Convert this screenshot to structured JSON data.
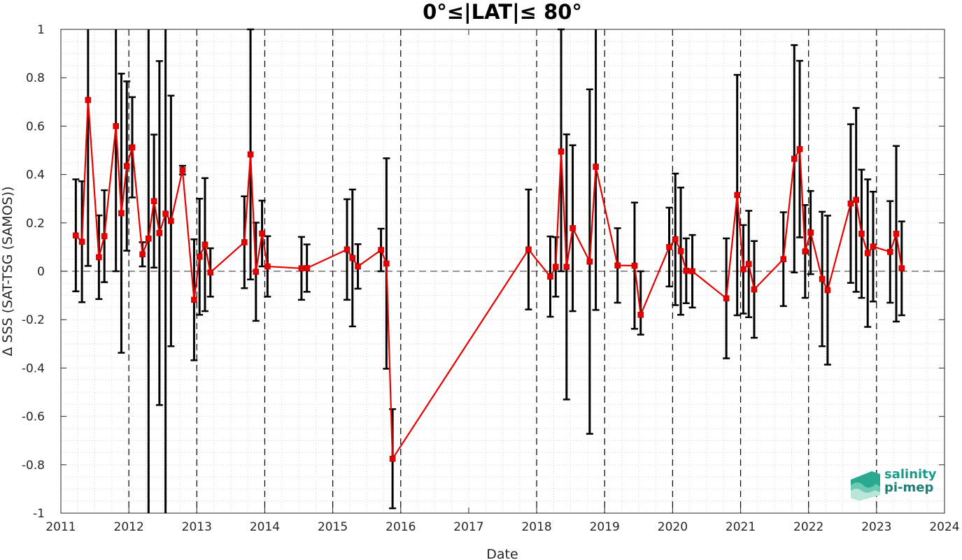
{
  "chart_data": {
    "type": "line",
    "title": "0°≤|LAT|≤ 80°",
    "xlabel": "Date",
    "ylabel": "Δ SSS (SAT-TSG (SAMOS))",
    "xlim": [
      2011,
      2024
    ],
    "ylim": [
      -1,
      1
    ],
    "x_ticks": [
      "2011",
      "2012",
      "2013",
      "2014",
      "2015",
      "2016",
      "2017",
      "2018",
      "2019",
      "2020",
      "2021",
      "2022",
      "2023",
      "2024"
    ],
    "y_ticks": [
      "-1",
      "-0.8",
      "-0.6",
      "-0.4",
      "-0.2",
      "0",
      "0.2",
      "0.4",
      "0.6",
      "0.8",
      "1"
    ],
    "grid": "dotted minor grid",
    "reference_line": 0,
    "year_markers": [
      2012,
      2013,
      2014,
      2015,
      2016,
      2018,
      2019,
      2020,
      2021,
      2022,
      2023
    ],
    "colors": {
      "series": "#e60000",
      "errorbar": "#000000",
      "yearline": "#000000"
    },
    "series": [
      {
        "points": [
          {
            "x": 2011.22,
            "y": 0.148,
            "err_low": -0.083,
            "err_high": 0.38
          },
          {
            "x": 2011.31,
            "y": 0.122,
            "err_low": -0.128,
            "err_high": 0.372
          },
          {
            "x": 2011.4,
            "y": 0.708,
            "err_low": 0.022,
            "err_high": 1.394
          },
          {
            "x": 2011.56,
            "y": 0.058,
            "err_low": -0.115,
            "err_high": 0.231
          },
          {
            "x": 2011.64,
            "y": 0.145,
            "err_low": -0.045,
            "err_high": 0.335
          },
          {
            "x": 2011.81,
            "y": 0.6,
            "err_low": 0.0,
            "err_high": 1.2
          },
          {
            "x": 2011.89,
            "y": 0.24,
            "err_low": -0.337,
            "err_high": 0.817
          },
          {
            "x": 2011.97,
            "y": 0.435,
            "err_low": 0.085,
            "err_high": 0.785
          },
          {
            "x": 2012.05,
            "y": 0.512,
            "err_low": 0.305,
            "err_high": 0.72
          },
          {
            "x": 2012.2,
            "y": 0.07,
            "err_low": 0.02,
            "err_high": 0.12
          },
          {
            "x": 2012.29,
            "y": 0.135,
            "err_low": -1.05,
            "err_high": 1.32
          },
          {
            "x": 2012.37,
            "y": 0.29,
            "err_low": 0.015,
            "err_high": 0.565
          },
          {
            "x": 2012.45,
            "y": 0.158,
            "err_low": -0.553,
            "err_high": 0.869
          },
          {
            "x": 2012.54,
            "y": 0.238,
            "err_low": -1.05,
            "err_high": 1.52
          },
          {
            "x": 2012.62,
            "y": 0.208,
            "err_low": -0.31,
            "err_high": 0.726
          },
          {
            "x": 2012.79,
            "y": 0.418,
            "err_low": 0.4,
            "err_high": 0.436
          },
          {
            "x": 2012.96,
            "y": -0.118,
            "err_low": -0.368,
            "err_high": 0.132
          },
          {
            "x": 2013.04,
            "y": 0.06,
            "err_low": -0.18,
            "err_high": 0.3
          },
          {
            "x": 2013.12,
            "y": 0.11,
            "err_low": -0.165,
            "err_high": 0.385
          },
          {
            "x": 2013.2,
            "y": -0.005,
            "err_low": -0.105,
            "err_high": 0.095
          },
          {
            "x": 2013.7,
            "y": 0.12,
            "err_low": -0.07,
            "err_high": 0.31
          },
          {
            "x": 2013.79,
            "y": 0.483,
            "err_low": -0.034,
            "err_high": 1.0
          },
          {
            "x": 2013.87,
            "y": -0.002,
            "err_low": -0.205,
            "err_high": 0.201
          },
          {
            "x": 2013.96,
            "y": 0.156,
            "err_low": 0.02,
            "err_high": 0.292
          },
          {
            "x": 2014.04,
            "y": 0.02,
            "err_low": -0.105,
            "err_high": 0.145
          },
          {
            "x": 2014.54,
            "y": 0.012,
            "err_low": -0.118,
            "err_high": 0.142
          },
          {
            "x": 2014.62,
            "y": 0.013,
            "err_low": -0.085,
            "err_high": 0.111
          },
          {
            "x": 2015.21,
            "y": 0.09,
            "err_low": -0.118,
            "err_high": 0.298
          },
          {
            "x": 2015.29,
            "y": 0.055,
            "err_low": -0.228,
            "err_high": 0.338
          },
          {
            "x": 2015.37,
            "y": 0.02,
            "err_low": -0.072,
            "err_high": 0.112
          },
          {
            "x": 2015.71,
            "y": 0.088,
            "err_low": 0.0,
            "err_high": 0.176
          },
          {
            "x": 2015.79,
            "y": 0.032,
            "err_low": -0.403,
            "err_high": 0.467
          },
          {
            "x": 2015.88,
            "y": -0.775,
            "err_low": -0.98,
            "err_high": -0.57
          },
          {
            "x": 2017.88,
            "y": 0.09,
            "err_low": -0.158,
            "err_high": 0.338
          },
          {
            "x": 2018.2,
            "y": -0.022,
            "err_low": -0.188,
            "err_high": 0.144
          },
          {
            "x": 2018.28,
            "y": 0.018,
            "err_low": -0.105,
            "err_high": 0.141
          },
          {
            "x": 2018.36,
            "y": 0.495,
            "err_low": 0.0,
            "err_high": 1.0
          },
          {
            "x": 2018.44,
            "y": 0.018,
            "err_low": -0.53,
            "err_high": 0.566
          },
          {
            "x": 2018.53,
            "y": 0.178,
            "err_low": -0.165,
            "err_high": 0.521
          },
          {
            "x": 2018.78,
            "y": 0.04,
            "err_low": -0.672,
            "err_high": 0.752
          },
          {
            "x": 2018.87,
            "y": 0.432,
            "err_low": -0.16,
            "err_high": 1.024
          },
          {
            "x": 2019.19,
            "y": 0.024,
            "err_low": -0.13,
            "err_high": 0.178
          },
          {
            "x": 2019.44,
            "y": 0.023,
            "err_low": -0.238,
            "err_high": 0.284
          },
          {
            "x": 2019.53,
            "y": -0.18,
            "err_low": -0.262,
            "err_high": 0.0
          },
          {
            "x": 2019.95,
            "y": 0.1,
            "err_low": -0.063,
            "err_high": 0.263
          },
          {
            "x": 2020.04,
            "y": 0.132,
            "err_low": -0.14,
            "err_high": 0.404
          },
          {
            "x": 2020.12,
            "y": 0.083,
            "err_low": -0.18,
            "err_high": 0.346
          },
          {
            "x": 2020.2,
            "y": 0.002,
            "err_low": -0.132,
            "err_high": 0.136
          },
          {
            "x": 2020.29,
            "y": 0.0,
            "err_low": -0.15,
            "err_high": 0.15
          },
          {
            "x": 2020.79,
            "y": -0.112,
            "err_low": -0.36,
            "err_high": 0.136
          },
          {
            "x": 2020.95,
            "y": 0.315,
            "err_low": -0.182,
            "err_high": 0.812
          },
          {
            "x": 2021.04,
            "y": 0.008,
            "err_low": -0.175,
            "err_high": 0.191
          },
          {
            "x": 2021.12,
            "y": 0.03,
            "err_low": -0.19,
            "err_high": 0.25
          },
          {
            "x": 2021.2,
            "y": -0.075,
            "err_low": -0.275,
            "err_high": 0.125
          },
          {
            "x": 2021.63,
            "y": 0.05,
            "err_low": -0.144,
            "err_high": 0.244
          },
          {
            "x": 2021.79,
            "y": 0.465,
            "err_low": -0.005,
            "err_high": 0.935
          },
          {
            "x": 2021.87,
            "y": 0.505,
            "err_low": 0.14,
            "err_high": 0.87
          },
          {
            "x": 2021.95,
            "y": 0.082,
            "err_low": -0.11,
            "err_high": 0.274
          },
          {
            "x": 2022.03,
            "y": 0.16,
            "err_low": -0.012,
            "err_high": 0.332
          },
          {
            "x": 2022.2,
            "y": -0.032,
            "err_low": -0.31,
            "err_high": 0.246
          },
          {
            "x": 2022.28,
            "y": -0.078,
            "err_low": -0.386,
            "err_high": 0.23
          },
          {
            "x": 2022.62,
            "y": 0.28,
            "err_low": -0.048,
            "err_high": 0.608
          },
          {
            "x": 2022.7,
            "y": 0.295,
            "err_low": -0.085,
            "err_high": 0.675
          },
          {
            "x": 2022.78,
            "y": 0.155,
            "err_low": -0.11,
            "err_high": 0.42
          },
          {
            "x": 2022.87,
            "y": 0.075,
            "err_low": -0.23,
            "err_high": 0.38
          },
          {
            "x": 2022.95,
            "y": 0.102,
            "err_low": -0.125,
            "err_high": 0.329
          },
          {
            "x": 2023.2,
            "y": 0.08,
            "err_low": -0.13,
            "err_high": 0.29
          },
          {
            "x": 2023.29,
            "y": 0.155,
            "err_low": -0.208,
            "err_high": 0.518
          },
          {
            "x": 2023.37,
            "y": 0.012,
            "err_low": -0.182,
            "err_high": 0.206
          }
        ]
      }
    ]
  },
  "logo": {
    "line1": "salinity",
    "line2": "pi-mep"
  }
}
